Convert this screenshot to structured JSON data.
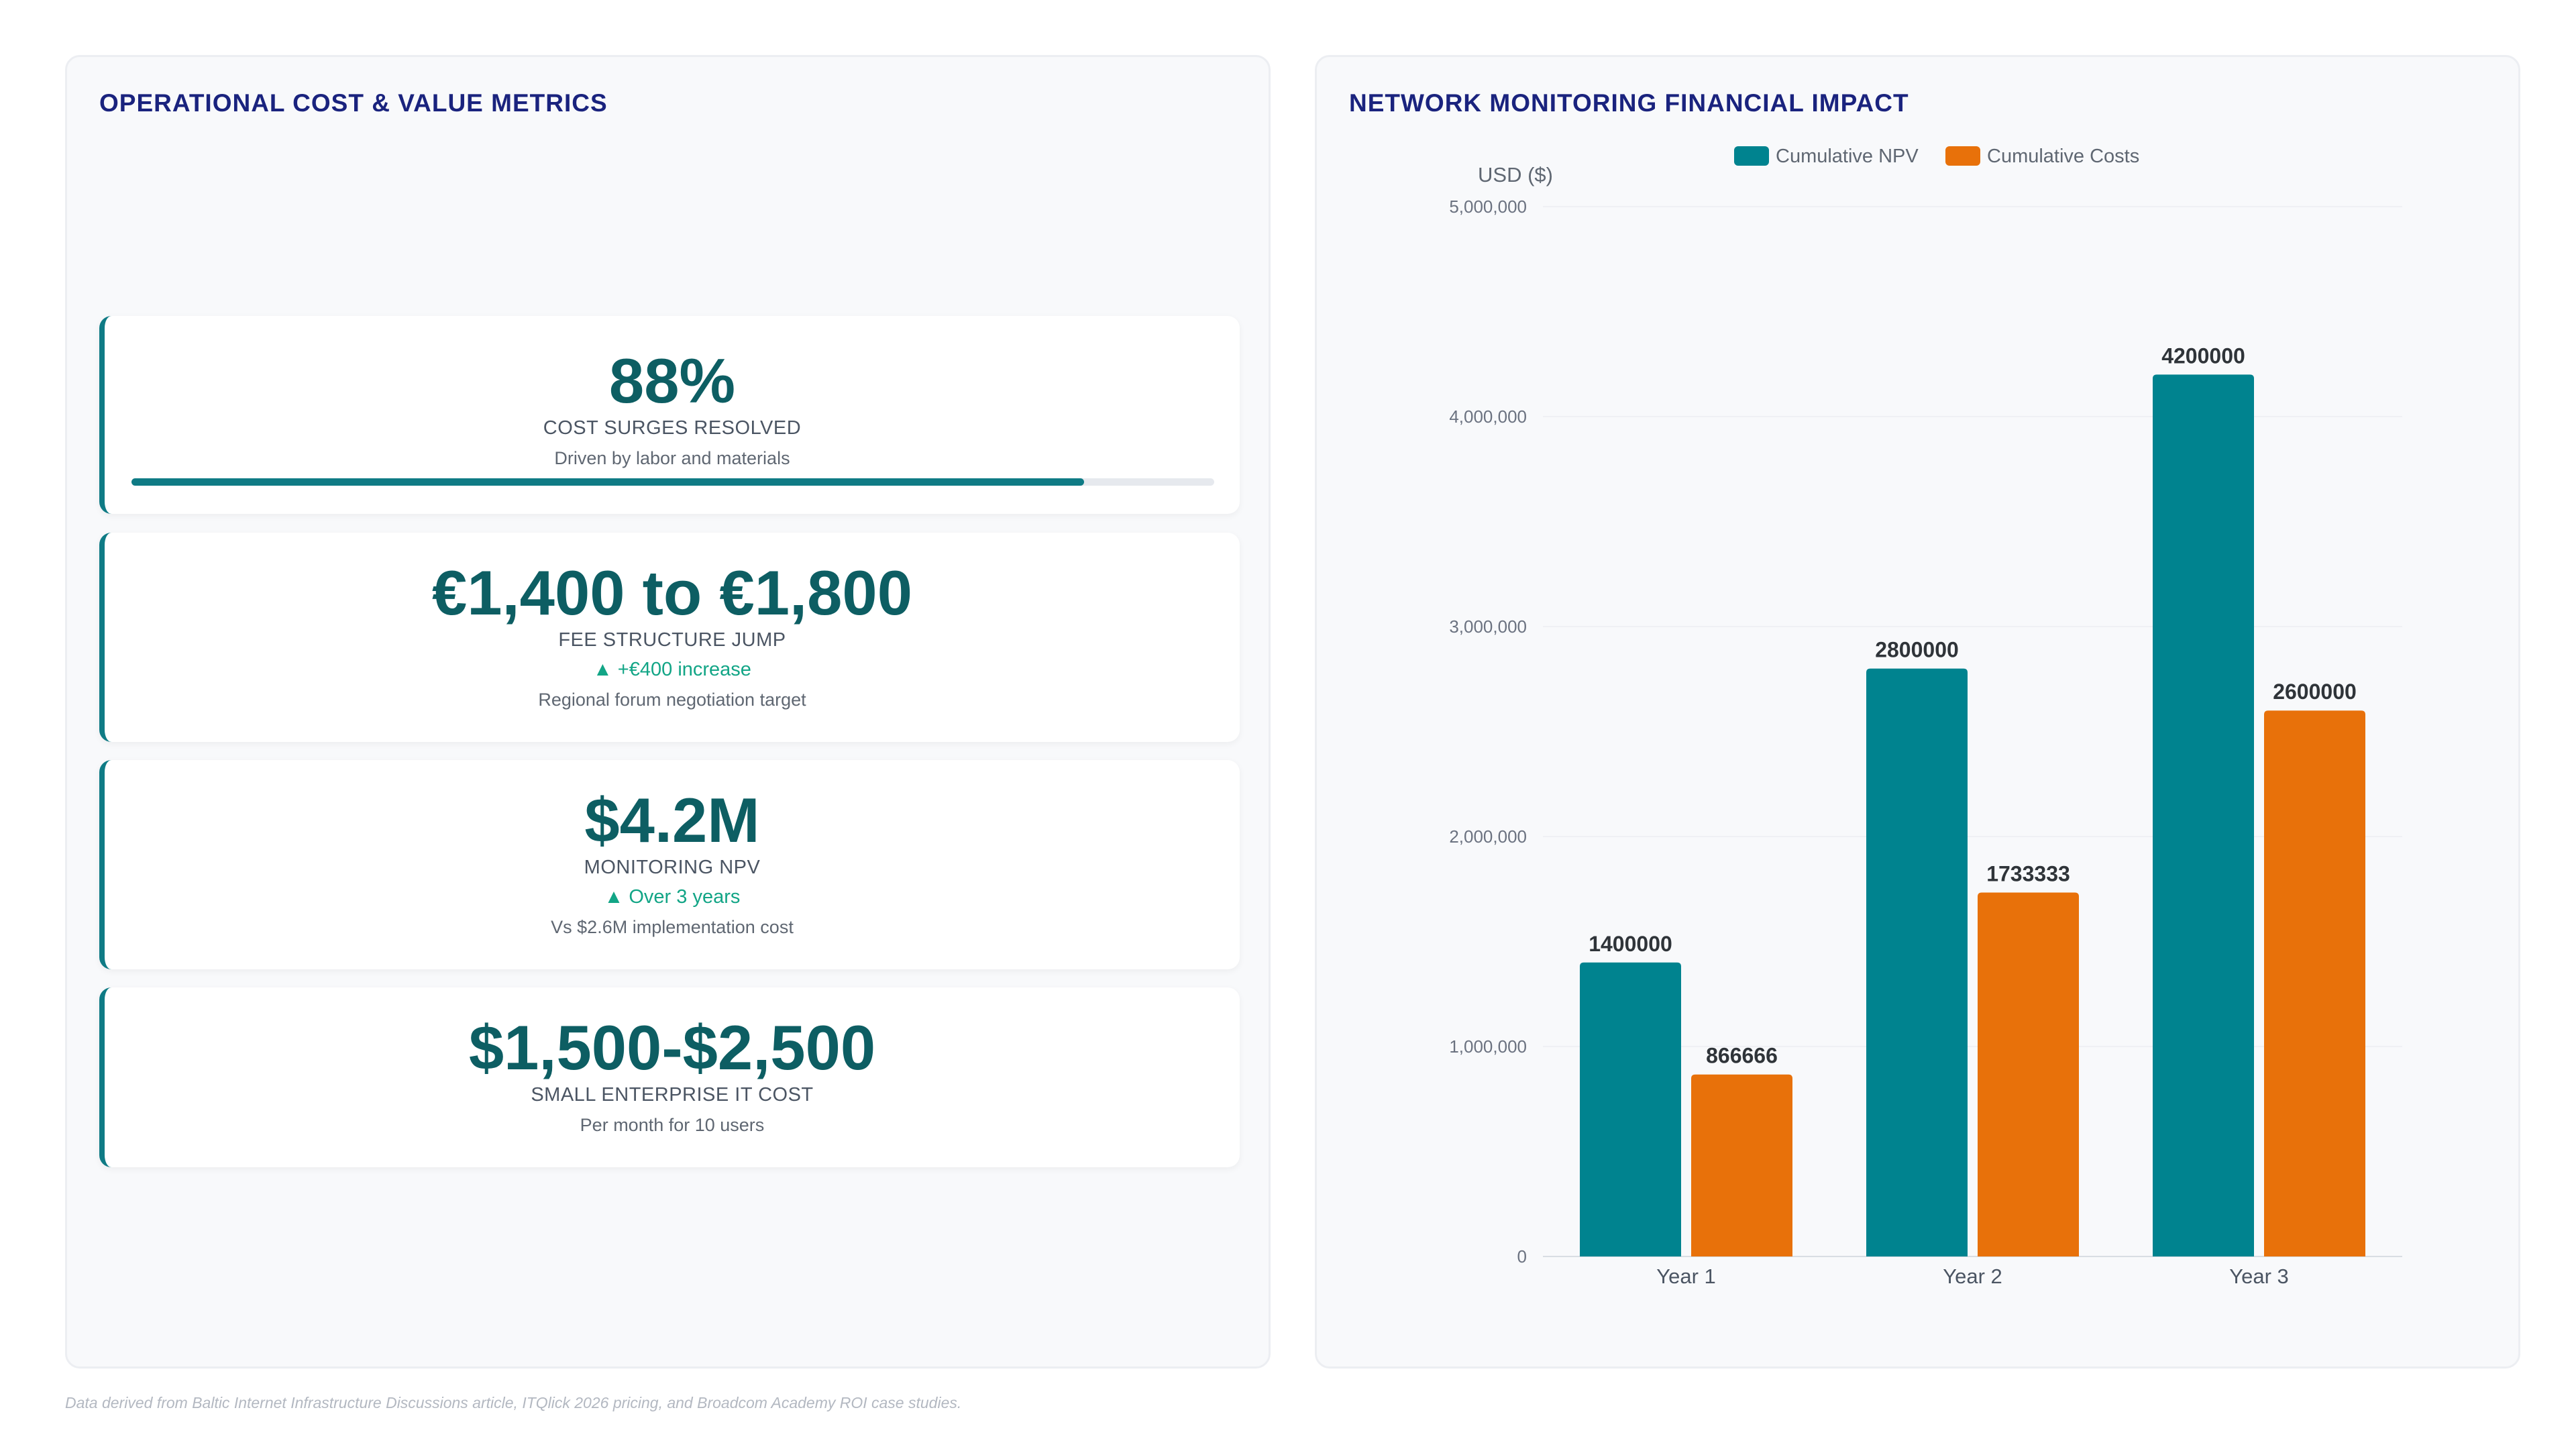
{
  "left_panel": {
    "title": "OPERATIONAL COST & VALUE METRICS",
    "metrics": [
      {
        "value": "88%",
        "label": "COST SURGES RESOLVED",
        "subtext": "Driven by labor and materials",
        "progress": 0.88
      },
      {
        "value": "€1,400 to €1,800",
        "label": "FEE STRUCTURE JUMP",
        "trend": "▲ +€400 increase",
        "subtext": "Regional forum negotiation target"
      },
      {
        "value": "$4.2M",
        "label": "MONITORING NPV",
        "trend": "▲ Over 3 years",
        "subtext": "Vs $2.6M implementation cost"
      },
      {
        "value": "$1,500-$2,500",
        "label": "SMALL ENTERPRISE IT COST",
        "subtext": "Per month for 10 users"
      }
    ]
  },
  "right_panel": {
    "title": "NETWORK MONITORING FINANCIAL IMPACT"
  },
  "chart_data": {
    "type": "bar",
    "title": "NETWORK MONITORING FINANCIAL IMPACT",
    "xlabel": "",
    "ylabel": "USD ($)",
    "categories": [
      "Year 1",
      "Year 2",
      "Year 3"
    ],
    "series": [
      {
        "name": "Cumulative NPV",
        "values": [
          1400000,
          2800000,
          4200000
        ],
        "color": "#00838f"
      },
      {
        "name": "Cumulative Costs",
        "values": [
          866666,
          1733333,
          2600000
        ],
        "color": "#e8710a"
      }
    ],
    "ylim": [
      0,
      5000000
    ],
    "yticks": [
      0,
      1000000,
      2000000,
      3000000,
      4000000,
      5000000
    ],
    "ytick_labels": [
      "0",
      "1,000,000",
      "2,000,000",
      "3,000,000",
      "4,000,000",
      "5,000,000"
    ],
    "legend_position": "top",
    "grid": true,
    "data_labels": true
  },
  "colors": {
    "title": "#1a237e",
    "metric_value": "#0d5e63",
    "accent": "#0f7b85",
    "trend_up": "#12a586"
  },
  "footer": {
    "note": "Data derived from Baltic Internet Infrastructure Discussions article, ITQlick 2026 pricing, and Broadcom Academy ROI case studies."
  }
}
